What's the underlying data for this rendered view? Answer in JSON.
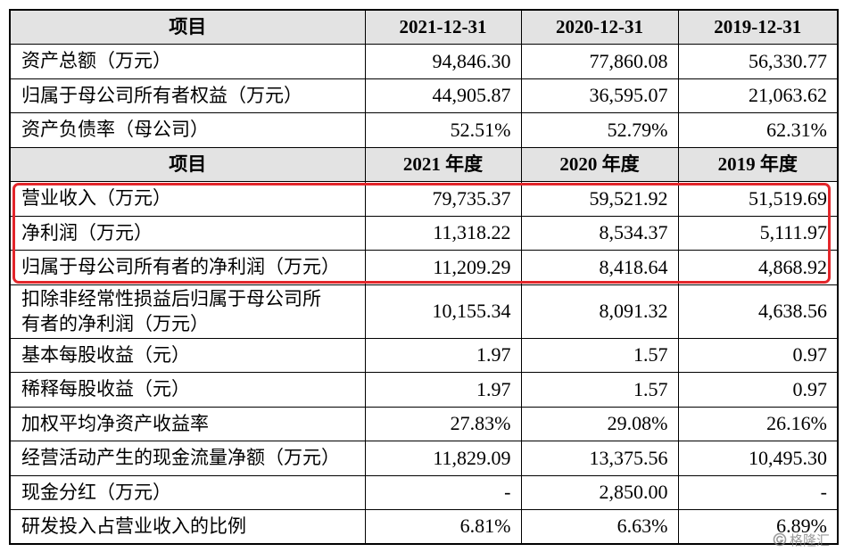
{
  "table": {
    "rows": [
      {
        "header": true,
        "cells": [
          "项目",
          "2021-12-31",
          "2020-12-31",
          "2019-12-31"
        ]
      },
      {
        "header": false,
        "cells": [
          "资产总额（万元）",
          "94,846.30",
          "77,860.08",
          "56,330.77"
        ]
      },
      {
        "header": false,
        "cells": [
          "归属于母公司所有者权益（万元）",
          "44,905.87",
          "36,595.07",
          "21,063.62"
        ]
      },
      {
        "header": false,
        "cells": [
          "资产负债率（母公司）",
          "52.51%",
          "52.79%",
          "62.31%"
        ]
      },
      {
        "header": true,
        "cells": [
          "项目",
          "2021 年度",
          "2020 年度",
          "2019 年度"
        ]
      },
      {
        "header": false,
        "cells": [
          "营业收入（万元）",
          "79,735.37",
          "59,521.92",
          "51,519.69"
        ]
      },
      {
        "header": false,
        "cells": [
          "净利润（万元）",
          "11,318.22",
          "8,534.37",
          "5,111.97"
        ]
      },
      {
        "header": false,
        "cells": [
          "归属于母公司所有者的净利润（万元）",
          "11,209.29",
          "8,418.64",
          "4,868.92"
        ]
      },
      {
        "header": false,
        "cells": [
          "扣除非经常性损益后归属于母公司所有者的净利润（万元）",
          "10,155.34",
          "8,091.32",
          "4,638.56"
        ]
      },
      {
        "header": false,
        "cells": [
          "基本每股收益（元）",
          "1.97",
          "1.57",
          "0.97"
        ]
      },
      {
        "header": false,
        "cells": [
          "稀释每股收益（元）",
          "1.97",
          "1.57",
          "0.97"
        ]
      },
      {
        "header": false,
        "cells": [
          "加权平均净资产收益率",
          "27.83%",
          "29.08%",
          "26.16%"
        ]
      },
      {
        "header": false,
        "cells": [
          "经营活动产生的现金流量净额（万元）",
          "11,829.09",
          "13,375.56",
          "10,495.30"
        ]
      },
      {
        "header": false,
        "cells": [
          "现金分红（万元）",
          "-",
          "2,850.00",
          "-"
        ]
      },
      {
        "header": false,
        "cells": [
          "研发投入占营业收入的比例",
          "6.81%",
          "6.63%",
          "6.89%"
        ]
      }
    ],
    "highlight": {
      "rows": [
        5,
        6,
        7
      ],
      "color": "#e3262b"
    }
  },
  "colors": {
    "header_bg": "#e3e3e3"
  },
  "watermark": {
    "text": "格隆汇",
    "icon": "gelonghui-logo-icon"
  }
}
